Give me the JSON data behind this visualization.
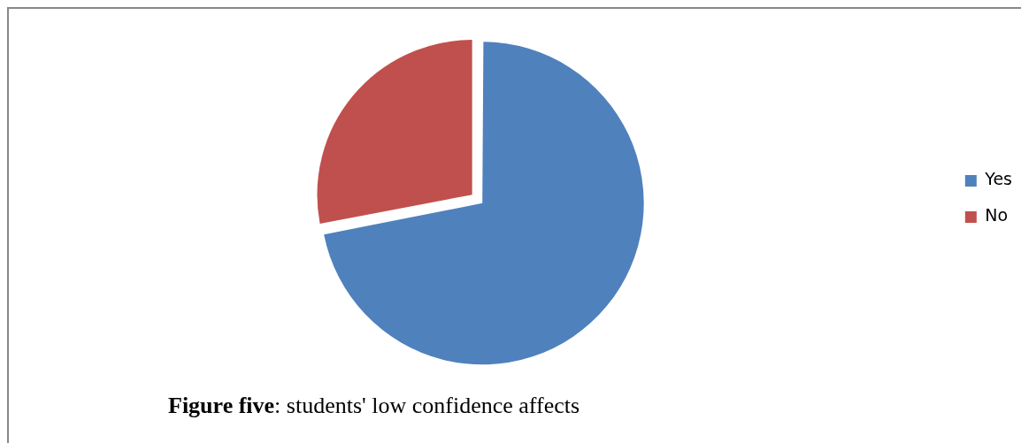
{
  "chart_data": {
    "type": "pie",
    "title": "Figure five: students' low confidence affects",
    "categories": [
      "Yes",
      "No"
    ],
    "values": [
      72,
      28
    ],
    "colors": [
      "#4f81bd",
      "#c0504d"
    ],
    "legend": "right"
  }
}
